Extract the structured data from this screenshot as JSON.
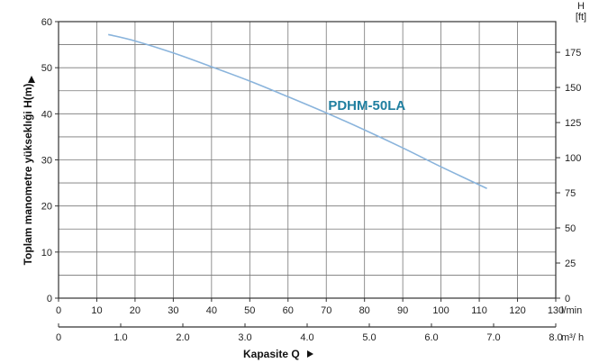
{
  "chart_data": {
    "type": "line",
    "series": [
      {
        "name": "PDHM-50LA",
        "x": [
          13,
          20,
          30,
          40,
          50,
          60,
          70,
          80,
          90,
          100,
          112
        ],
        "y": [
          57.2,
          55.8,
          53.2,
          50.2,
          47.1,
          43.7,
          40.2,
          36.5,
          32.6,
          28.5,
          23.8
        ]
      }
    ],
    "xlabel": "Kapasite Q",
    "ylabel": "Toplam manometre yükseklıği  H(m)",
    "x_unit": "l/min",
    "xlim": [
      0,
      130
    ],
    "ylim": [
      0,
      60
    ],
    "x_ticks": [
      "0",
      "10",
      "20",
      "30",
      "40",
      "50",
      "60",
      "70",
      "80",
      "90",
      "100",
      "110",
      "120",
      "130"
    ],
    "y_ticks": [
      "0",
      "10",
      "20",
      "30",
      "40",
      "50",
      "60"
    ],
    "secondary_x": {
      "unit": "m³/ h",
      "ticks": [
        "0",
        "1.0",
        "2.0",
        "3.0",
        "4.0",
        "5.0",
        "6.0",
        "7.0",
        "8.0"
      ]
    },
    "secondary_y": {
      "unit_top": "H",
      "unit_bottom": "[ft]",
      "ticks": [
        "0",
        "25",
        "50",
        "75",
        "100",
        "125",
        "150",
        "175"
      ]
    },
    "grid": true,
    "colors": {
      "curve": "#8ab4dc",
      "label": "#1f7fa0",
      "grid": "#777777",
      "axis": "#333333"
    }
  }
}
